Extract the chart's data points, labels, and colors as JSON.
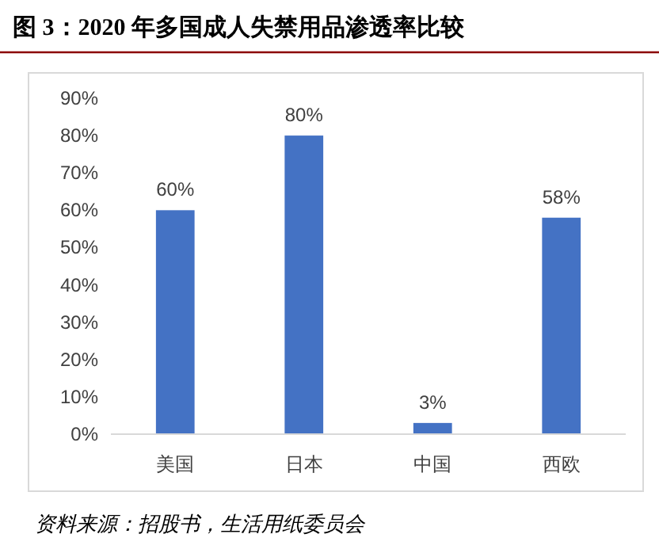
{
  "chart_data": {
    "type": "bar",
    "title": "图 3：2020 年多国成人失禁用品渗透率比较",
    "categories": [
      "美国",
      "日本",
      "中国",
      "西欧"
    ],
    "values": [
      60,
      80,
      3,
      58
    ],
    "value_labels": [
      "60%",
      "80%",
      "3%",
      "58%"
    ],
    "color": "#4472c4",
    "ylim": [
      0,
      90
    ],
    "yticks": [
      {
        "value": 0,
        "label": "0%"
      },
      {
        "value": 10,
        "label": "10%"
      },
      {
        "value": 20,
        "label": "20%"
      },
      {
        "value": 30,
        "label": "30%"
      },
      {
        "value": 40,
        "label": "40%"
      },
      {
        "value": 50,
        "label": "50%"
      },
      {
        "value": 60,
        "label": "60%"
      },
      {
        "value": 70,
        "label": "70%"
      },
      {
        "value": 80,
        "label": "80%"
      },
      {
        "value": 90,
        "label": "90%"
      }
    ],
    "grid": false,
    "annotations": [
      "资料来源：招股书，生活用纸委员会"
    ]
  }
}
